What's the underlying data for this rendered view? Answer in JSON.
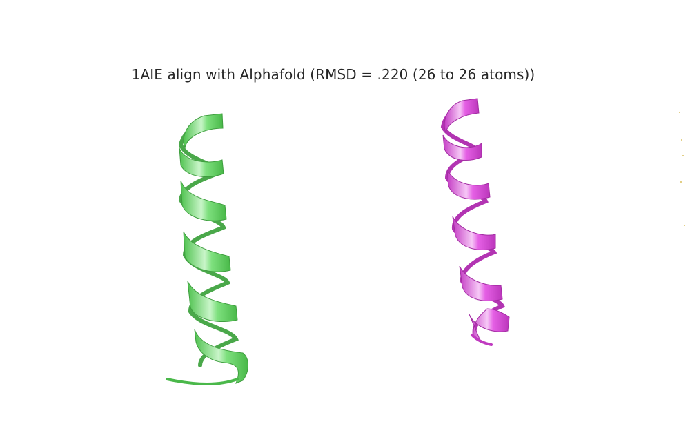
{
  "figure": {
    "title": "1AIE align with Alphafold (RMSD = .220 (26 to 26 atoms))"
  },
  "structures": [
    {
      "id": "1AIE",
      "color": "#66e066",
      "edge": "#3f9e3f",
      "highlight": "#d6f7d6"
    },
    {
      "id": "Alphafold",
      "color": "#e052e0",
      "edge": "#a32da3",
      "highlight": "#f7d3f7"
    }
  ]
}
